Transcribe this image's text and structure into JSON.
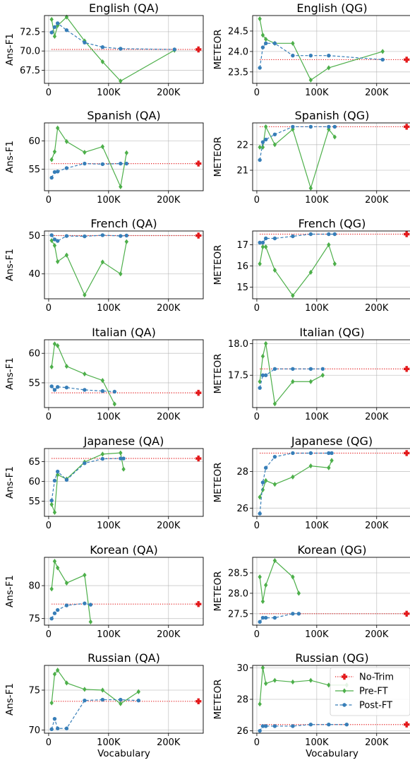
{
  "legend": {
    "position": "top-right of Russian (QG) panel",
    "entries": [
      {
        "key": "notrim",
        "label": "No-Trim",
        "color": "#e31a1c",
        "marker": "plus",
        "line": "dotted"
      },
      {
        "key": "pre",
        "label": "Pre-FT",
        "color": "#4daf4a",
        "marker": "diamond",
        "line": "solid"
      },
      {
        "key": "post",
        "label": "Post-FT",
        "color": "#377eb8",
        "marker": "circle",
        "line": "dashed"
      }
    ]
  },
  "x_axis": {
    "label": "Vocabulary",
    "range": [
      -7000,
      258000
    ],
    "ticks": [
      0,
      100000,
      200000
    ],
    "tick_labels": [
      "0",
      "100K",
      "200K"
    ]
  },
  "chart_data": [
    {
      "type": "line",
      "title": "English (QA)",
      "ylabel": "Ans-F1",
      "ylim": [
        65.8,
        74.6
      ],
      "yticks": [
        67.5,
        70.0,
        72.5
      ],
      "ytick_labels": [
        "67.5",
        "70.0",
        "72.5"
      ],
      "grid": true,
      "series": [
        {
          "key": "pre",
          "x": [
            5000,
            10000,
            15000,
            30000,
            60000,
            90000,
            120000,
            210000
          ],
          "y": [
            74.1,
            71.9,
            73.3,
            74.4,
            71.3,
            68.6,
            66.1,
            70.1
          ]
        },
        {
          "key": "post",
          "x": [
            5000,
            10000,
            15000,
            30000,
            60000,
            90000,
            120000,
            210000
          ],
          "y": [
            72.4,
            73.1,
            73.6,
            72.7,
            71.1,
            70.5,
            70.3,
            70.2
          ]
        },
        {
          "key": "notrim",
          "x": [
            5000,
            250000
          ],
          "y": [
            70.2,
            70.2
          ]
        }
      ]
    },
    {
      "type": "line",
      "title": "English (QG)",
      "ylabel": "METEOR",
      "ylim": [
        23.22,
        24.88
      ],
      "yticks": [
        23.5,
        24.0,
        24.5
      ],
      "ytick_labels": [
        "23.5",
        "24.0",
        "24.5"
      ],
      "grid": true,
      "series": [
        {
          "key": "pre",
          "x": [
            5000,
            10000,
            15000,
            30000,
            60000,
            90000,
            120000,
            210000
          ],
          "y": [
            24.8,
            24.4,
            24.3,
            24.2,
            24.2,
            23.3,
            23.6,
            24.0
          ]
        },
        {
          "key": "post",
          "x": [
            5000,
            10000,
            15000,
            30000,
            60000,
            90000,
            120000,
            210000
          ],
          "y": [
            23.6,
            24.1,
            24.2,
            24.2,
            23.9,
            23.9,
            23.9,
            23.8
          ]
        },
        {
          "key": "notrim",
          "x": [
            5000,
            250000
          ],
          "y": [
            23.8,
            23.8
          ]
        }
      ]
    },
    {
      "type": "line",
      "title": "Spanish (QA)",
      "ylabel": "Ans-F1",
      "ylim": [
        51.2,
        63.2
      ],
      "yticks": [
        55,
        60
      ],
      "ytick_labels": [
        "55",
        "60"
      ],
      "grid": true,
      "series": [
        {
          "key": "pre",
          "x": [
            5000,
            10000,
            15000,
            30000,
            60000,
            90000,
            120000,
            130000
          ],
          "y": [
            56.7,
            58.1,
            62.3,
            59.9,
            58.0,
            59.0,
            51.9,
            57.9
          ]
        },
        {
          "key": "post",
          "x": [
            5000,
            10000,
            15000,
            30000,
            60000,
            90000,
            120000,
            130000
          ],
          "y": [
            53.5,
            54.5,
            54.6,
            55.2,
            56.0,
            55.9,
            56.0,
            56.0
          ]
        },
        {
          "key": "notrim",
          "x": [
            5000,
            250000
          ],
          "y": [
            56.0,
            56.0
          ]
        }
      ]
    },
    {
      "type": "line",
      "title": "Spanish (QG)",
      "ylabel": "METEOR",
      "ylim": [
        20.2,
        22.85
      ],
      "yticks": [
        21,
        22
      ],
      "ytick_labels": [
        "21",
        "22"
      ],
      "grid": true,
      "series": [
        {
          "key": "pre",
          "x": [
            5000,
            10000,
            15000,
            30000,
            60000,
            90000,
            120000,
            130000
          ],
          "y": [
            21.9,
            21.9,
            22.7,
            22.0,
            22.6,
            20.3,
            22.6,
            22.3
          ]
        },
        {
          "key": "post",
          "x": [
            5000,
            10000,
            15000,
            30000,
            60000,
            90000,
            120000,
            130000
          ],
          "y": [
            21.4,
            22.1,
            22.2,
            22.4,
            22.7,
            22.7,
            22.7,
            22.7
          ]
        },
        {
          "key": "notrim",
          "x": [
            5000,
            250000
          ],
          "y": [
            22.7,
            22.7
          ]
        }
      ]
    },
    {
      "type": "line",
      "title": "French (QA)",
      "ylabel": "Ans-F1",
      "ylim": [
        33.5,
        51.2
      ],
      "yticks": [
        40,
        50
      ],
      "ytick_labels": [
        "40",
        "50"
      ],
      "grid": true,
      "series": [
        {
          "key": "pre",
          "x": [
            5000,
            10000,
            15000,
            30000,
            60000,
            90000,
            120000,
            130000
          ],
          "y": [
            48.7,
            47.4,
            43.2,
            44.9,
            34.5,
            43.1,
            40.0,
            48.4
          ]
        },
        {
          "key": "post",
          "x": [
            5000,
            10000,
            15000,
            30000,
            60000,
            90000,
            120000,
            130000
          ],
          "y": [
            50.1,
            49.0,
            48.6,
            49.9,
            49.8,
            50.1,
            49.9,
            50.0
          ]
        },
        {
          "key": "notrim",
          "x": [
            5000,
            250000
          ],
          "y": [
            50.0,
            50.0
          ]
        }
      ]
    },
    {
      "type": "line",
      "title": "French (QG)",
      "ylabel": "METEOR",
      "ylim": [
        14.45,
        17.65
      ],
      "yticks": [
        15,
        16,
        17
      ],
      "ytick_labels": [
        "15",
        "16",
        "17"
      ],
      "grid": true,
      "series": [
        {
          "key": "pre",
          "x": [
            5000,
            10000,
            15000,
            30000,
            60000,
            90000,
            120000,
            130000
          ],
          "y": [
            16.1,
            16.9,
            16.9,
            15.8,
            14.6,
            15.7,
            17.0,
            16.1
          ]
        },
        {
          "key": "post",
          "x": [
            5000,
            10000,
            15000,
            30000,
            60000,
            90000,
            120000,
            130000
          ],
          "y": [
            17.1,
            17.1,
            17.3,
            17.3,
            17.4,
            17.5,
            17.5,
            17.5
          ]
        },
        {
          "key": "notrim",
          "x": [
            5000,
            250000
          ],
          "y": [
            17.5,
            17.5
          ]
        }
      ]
    },
    {
      "type": "line",
      "title": "Italian (QA)",
      "ylabel": "Ans-F1",
      "ylim": [
        50.8,
        62.3
      ],
      "yticks": [
        55,
        60
      ],
      "ytick_labels": [
        "55",
        "60"
      ],
      "grid": true,
      "series": [
        {
          "key": "pre",
          "x": [
            5000,
            10000,
            15000,
            30000,
            60000,
            90000,
            110000
          ],
          "y": [
            57.7,
            61.6,
            61.3,
            57.8,
            56.5,
            55.4,
            51.4
          ]
        },
        {
          "key": "post",
          "x": [
            5000,
            10000,
            15000,
            30000,
            60000,
            90000,
            110000
          ],
          "y": [
            54.4,
            53.8,
            54.3,
            54.2,
            53.8,
            53.6,
            53.5
          ]
        },
        {
          "key": "notrim",
          "x": [
            5000,
            250000
          ],
          "y": [
            53.3,
            53.3
          ]
        }
      ]
    },
    {
      "type": "line",
      "title": "Italian (QG)",
      "ylabel": "METEOR",
      "ylim": [
        16.99,
        18.06
      ],
      "yticks": [
        17.5,
        18.0
      ],
      "ytick_labels": [
        "17.5",
        "18.0"
      ],
      "grid": true,
      "series": [
        {
          "key": "pre",
          "x": [
            5000,
            10000,
            15000,
            30000,
            60000,
            90000,
            110000
          ],
          "y": [
            17.4,
            17.8,
            18.0,
            17.05,
            17.4,
            17.4,
            17.5
          ]
        },
        {
          "key": "post",
          "x": [
            5000,
            10000,
            15000,
            30000,
            60000,
            90000,
            110000
          ],
          "y": [
            17.3,
            17.5,
            17.5,
            17.6,
            17.6,
            17.6,
            17.6
          ]
        },
        {
          "key": "notrim",
          "x": [
            5000,
            250000
          ],
          "y": [
            17.6,
            17.6
          ]
        }
      ]
    },
    {
      "type": "line",
      "title": "Japanese (QA)",
      "ylabel": "Ans-F1",
      "ylim": [
        51.2,
        68.3
      ],
      "yticks": [
        55,
        60,
        65
      ],
      "ytick_labels": [
        "55",
        "60",
        "65"
      ],
      "grid": true,
      "series": [
        {
          "key": "pre",
          "x": [
            5000,
            10000,
            15000,
            30000,
            60000,
            90000,
            120000,
            125000
          ],
          "y": [
            54.2,
            52.2,
            61.7,
            60.6,
            64.9,
            66.9,
            67.2,
            63.1
          ]
        },
        {
          "key": "post",
          "x": [
            5000,
            10000,
            15000,
            30000,
            60000,
            90000,
            120000,
            125000
          ],
          "y": [
            55.2,
            60.2,
            62.5,
            60.4,
            64.6,
            65.7,
            65.8,
            65.8
          ]
        },
        {
          "key": "notrim",
          "x": [
            5000,
            250000
          ],
          "y": [
            65.8,
            65.8
          ]
        }
      ]
    },
    {
      "type": "line",
      "title": "Japanese (QG)",
      "ylabel": "METEOR",
      "ylim": [
        25.55,
        29.25
      ],
      "yticks": [
        26,
        28
      ],
      "ytick_labels": [
        "26",
        "28"
      ],
      "grid": true,
      "series": [
        {
          "key": "pre",
          "x": [
            5000,
            10000,
            15000,
            30000,
            60000,
            90000,
            120000,
            125000
          ],
          "y": [
            26.6,
            27.0,
            27.5,
            27.3,
            27.7,
            28.3,
            28.2,
            28.6
          ]
        },
        {
          "key": "post",
          "x": [
            5000,
            10000,
            15000,
            30000,
            60000,
            90000,
            120000,
            125000
          ],
          "y": [
            25.7,
            27.4,
            28.2,
            28.8,
            29.0,
            29.0,
            29.0,
            29.0
          ]
        },
        {
          "key": "notrim",
          "x": [
            5000,
            250000
          ],
          "y": [
            29.0,
            29.0
          ]
        }
      ]
    },
    {
      "type": "line",
      "title": "Korean (QA)",
      "ylabel": "Ans-F1",
      "ylim": [
        74.0,
        84.3
      ],
      "yticks": [
        75,
        80
      ],
      "ytick_labels": [
        "75",
        "80"
      ],
      "grid": true,
      "series": [
        {
          "key": "pre",
          "x": [
            5000,
            10000,
            15000,
            30000,
            60000,
            70000
          ],
          "y": [
            79.5,
            83.7,
            82.7,
            80.4,
            81.6,
            74.5
          ]
        },
        {
          "key": "post",
          "x": [
            5000,
            10000,
            15000,
            30000,
            60000,
            70000
          ],
          "y": [
            75.0,
            75.8,
            76.3,
            77.0,
            77.3,
            77.1
          ]
        },
        {
          "key": "notrim",
          "x": [
            5000,
            250000
          ],
          "y": [
            77.2,
            77.2
          ]
        }
      ]
    },
    {
      "type": "line",
      "title": "Korean (QG)",
      "ylabel": "METEOR",
      "ylim": [
        27.22,
        28.88
      ],
      "yticks": [
        27.5,
        28.0,
        28.5
      ],
      "ytick_labels": [
        "27.5",
        "28.0",
        "28.5"
      ],
      "grid": true,
      "series": [
        {
          "key": "pre",
          "x": [
            5000,
            10000,
            15000,
            30000,
            60000,
            70000
          ],
          "y": [
            28.4,
            27.8,
            28.2,
            28.8,
            28.4,
            28.0
          ]
        },
        {
          "key": "post",
          "x": [
            5000,
            10000,
            15000,
            30000,
            60000,
            70000
          ],
          "y": [
            27.3,
            27.4,
            27.4,
            27.4,
            27.5,
            27.5
          ]
        },
        {
          "key": "notrim",
          "x": [
            5000,
            250000
          ],
          "y": [
            27.5,
            27.5
          ]
        }
      ]
    },
    {
      "type": "line",
      "title": "Russian (QA)",
      "ylabel": "Ans-F1",
      "ylim": [
        69.6,
        78.1
      ],
      "yticks": [
        70,
        75
      ],
      "ytick_labels": [
        "70",
        "75"
      ],
      "grid": true,
      "series": [
        {
          "key": "pre",
          "x": [
            5000,
            10000,
            15000,
            30000,
            60000,
            90000,
            120000,
            150000
          ],
          "y": [
            73.4,
            77.0,
            77.5,
            75.9,
            75.1,
            75.0,
            73.3,
            74.8
          ]
        },
        {
          "key": "post",
          "x": [
            5000,
            10000,
            15000,
            30000,
            60000,
            90000,
            120000,
            150000
          ],
          "y": [
            70.1,
            71.4,
            70.2,
            70.2,
            73.7,
            73.8,
            73.8,
            73.7
          ]
        },
        {
          "key": "notrim",
          "x": [
            5000,
            250000
          ],
          "y": [
            73.6,
            73.6
          ]
        }
      ]
    },
    {
      "type": "line",
      "title": "Russian (QG)",
      "ylabel": "METEOR",
      "ylim": [
        25.85,
        30.15
      ],
      "yticks": [
        26,
        28,
        30
      ],
      "ytick_labels": [
        "26",
        "28",
        "30"
      ],
      "grid": true,
      "series": [
        {
          "key": "pre",
          "x": [
            5000,
            10000,
            15000,
            30000,
            60000,
            90000,
            120000,
            150000
          ],
          "y": [
            27.7,
            30.0,
            29.0,
            29.2,
            29.1,
            29.2,
            28.9,
            28.9
          ]
        },
        {
          "key": "post",
          "x": [
            5000,
            10000,
            15000,
            30000,
            60000,
            90000,
            120000,
            150000
          ],
          "y": [
            26.0,
            26.3,
            26.3,
            26.3,
            26.3,
            26.4,
            26.4,
            26.4
          ]
        },
        {
          "key": "notrim",
          "x": [
            5000,
            250000
          ],
          "y": [
            26.4,
            26.4
          ]
        }
      ]
    }
  ]
}
